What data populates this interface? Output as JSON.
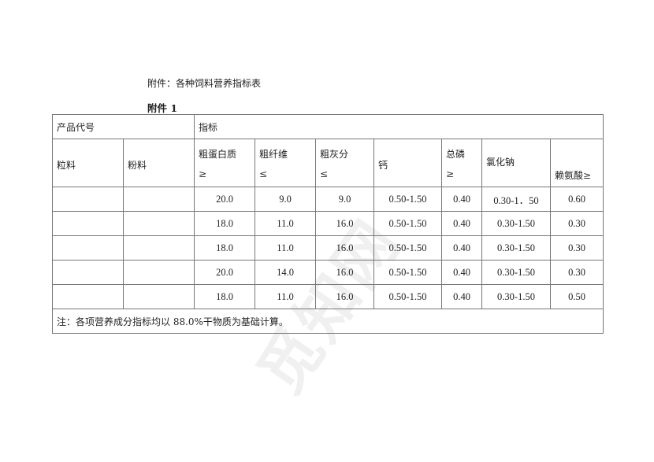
{
  "document": {
    "title": "附件：各种饲料营养指标表",
    "subtitle": "附件 1",
    "watermark": "觅知网"
  },
  "table": {
    "header_row1": {
      "product_code": "产品代号",
      "indicators": "指标"
    },
    "header_row2": {
      "pellet": "粒料",
      "powder": "粉料",
      "crude_protein": {
        "name": "粗蛋白质",
        "symbol": "≥"
      },
      "crude_fiber": {
        "name": "粗纤维",
        "symbol": "≤"
      },
      "crude_ash": {
        "name": "粗灰分",
        "symbol": "≤"
      },
      "calcium": "钙",
      "total_phosphorus": {
        "name": "总磷",
        "symbol": "≥"
      },
      "sodium_chloride": "氯化钠",
      "lysine": "赖氨酸≥"
    },
    "rows": [
      [
        "",
        "",
        "20.0",
        "9.0",
        "9.0",
        "0.50-1.50",
        "0.40",
        "0.30-1．50",
        "0.60"
      ],
      [
        "",
        "",
        "18.0",
        "11.0",
        "16.0",
        "0.50-1.50",
        "0.40",
        "0.30-1.50",
        "0.30"
      ],
      [
        "",
        "",
        "18.0",
        "11.0",
        "16.0",
        "0.50-1.50",
        "0.40",
        "0.30-1.50",
        "0.30"
      ],
      [
        "",
        "",
        "20.0",
        "14.0",
        "16.0",
        "0.50-1.50",
        "0.40",
        "0.30-1.50",
        "0.30"
      ],
      [
        "",
        "",
        "18.0",
        "11.0",
        "16.0",
        "0.50-1.50",
        "0.40",
        "0.30-1.50",
        "0.50"
      ]
    ],
    "note": "注：各项营养成分指标均以 88.0%干物质为基础计算。"
  }
}
